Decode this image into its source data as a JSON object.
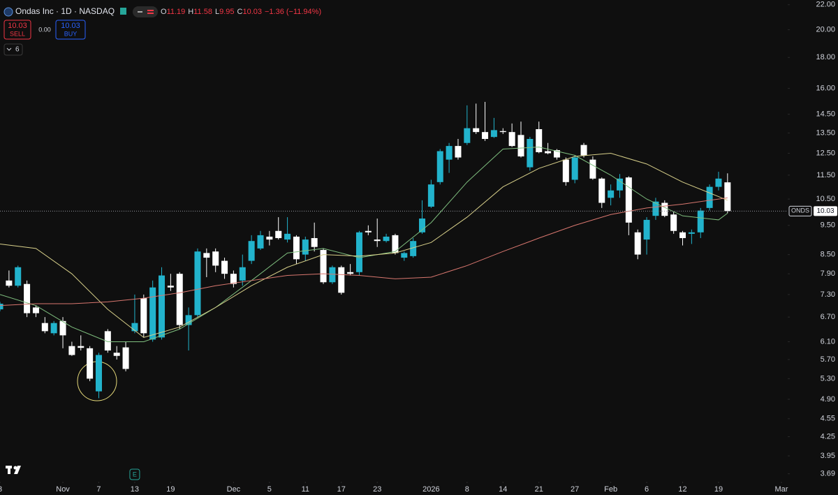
{
  "chart_data": {
    "type": "candlestick",
    "log_scale": true,
    "ylim": [
      3.58,
      22.4
    ],
    "xlim": [
      0,
      87.7
    ],
    "yticks": [
      {
        "value": 22,
        "label": "22.00"
      },
      {
        "value": 20,
        "label": "20.00"
      },
      {
        "value": 18,
        "label": "18.00"
      },
      {
        "value": 16,
        "label": "16.00"
      },
      {
        "value": 14.5,
        "label": "14.50"
      },
      {
        "value": 13.5,
        "label": "13.50"
      },
      {
        "value": 12.5,
        "label": "12.50"
      },
      {
        "value": 11.5,
        "label": "11.50"
      },
      {
        "value": 10.5,
        "label": "10.50"
      },
      {
        "value": 9.5,
        "label": "9.50"
      },
      {
        "value": 8.5,
        "label": "8.50"
      },
      {
        "value": 7.9,
        "label": "7.90"
      },
      {
        "value": 7.3,
        "label": "7.30"
      },
      {
        "value": 6.7,
        "label": "6.70"
      },
      {
        "value": 6.1,
        "label": "6.10"
      },
      {
        "value": 5.7,
        "label": "5.70"
      },
      {
        "value": 5.3,
        "label": "5.30"
      },
      {
        "value": 4.9,
        "label": "4.90"
      },
      {
        "value": 4.55,
        "label": "4.55"
      },
      {
        "value": 4.25,
        "label": "4.25"
      },
      {
        "value": 3.95,
        "label": "3.95"
      },
      {
        "value": 3.69,
        "label": "3.69"
      }
    ],
    "xticks": [
      {
        "value": 0,
        "label": "3"
      },
      {
        "value": 7,
        "label": "Nov"
      },
      {
        "value": 11,
        "label": "7"
      },
      {
        "value": 15,
        "label": "13"
      },
      {
        "value": 19,
        "label": "19"
      },
      {
        "value": 26,
        "label": "Dec"
      },
      {
        "value": 30,
        "label": "5"
      },
      {
        "value": 34,
        "label": "11"
      },
      {
        "value": 38,
        "label": "17"
      },
      {
        "value": 42,
        "label": "23"
      },
      {
        "value": 48,
        "label": "2026"
      },
      {
        "value": 52,
        "label": "8"
      },
      {
        "value": 56,
        "label": "14"
      },
      {
        "value": 60,
        "label": "21"
      },
      {
        "value": 64,
        "label": "27"
      },
      {
        "value": 68,
        "label": "Feb"
      },
      {
        "value": 72,
        "label": "6"
      },
      {
        "value": 76,
        "label": "12"
      },
      {
        "value": 80,
        "label": "19"
      },
      {
        "value": 87,
        "label": "Mar"
      }
    ],
    "up_color": "#22b3cc",
    "down_color": "#ffffff",
    "open": [
      6.9,
      7.7,
      7.55,
      7.6,
      6.95,
      6.55,
      6.3,
      6.6,
      6.0,
      6.0,
      5.95,
      5.05,
      6.35,
      5.85,
      5.97,
      6.35,
      7.2,
      6.15,
      6.2,
      7.55,
      7.9,
      6.5,
      6.75,
      8.55,
      8.6,
      8.3,
      7.9,
      7.7,
      8.3,
      8.7,
      9.1,
      9.3,
      9.0,
      9.1,
      8.5,
      9.05,
      8.65,
      7.65,
      8.1,
      7.95,
      7.95,
      9.3,
      9.0,
      8.95,
      9.15,
      8.4,
      8.45,
      9.25,
      10.2,
      11.2,
      12.2,
      12.85,
      13.0,
      13.75,
      13.55,
      13.3,
      13.6,
      13.55,
      13.4,
      11.85,
      13.7,
      12.6,
      12.65,
      12.2,
      11.3,
      12.9,
      12.2,
      11.35,
      10.55,
      10.85,
      11.4,
      9.25,
      9.0,
      9.85,
      10.35,
      9.9,
      9.25,
      9.2,
      9.25,
      10.15,
      11.0,
      11.19
    ],
    "high": [
      7.1,
      8.0,
      8.15,
      7.7,
      7.0,
      6.7,
      6.6,
      6.7,
      6.1,
      6.25,
      6.0,
      5.85,
      6.4,
      6.0,
      6.1,
      7.3,
      7.3,
      7.7,
      8.1,
      7.9,
      7.95,
      6.95,
      8.7,
      8.7,
      8.7,
      8.4,
      8.0,
      8.5,
      9.15,
      9.3,
      9.3,
      9.8,
      9.8,
      9.15,
      9.1,
      9.6,
      8.7,
      8.15,
      8.15,
      8.2,
      9.3,
      9.5,
      9.75,
      9.2,
      9.2,
      8.6,
      9.05,
      10.45,
      11.3,
      12.7,
      13.0,
      13.2,
      15.0,
      15.1,
      15.2,
      14.3,
      13.75,
      14.0,
      14.1,
      13.3,
      14.1,
      13.0,
      12.7,
      12.3,
      12.4,
      13.0,
      12.35,
      11.4,
      11.1,
      11.55,
      11.45,
      9.35,
      9.8,
      10.55,
      10.45,
      10.0,
      9.3,
      9.35,
      10.15,
      11.1,
      11.65,
      11.58
    ],
    "low": [
      6.85,
      7.5,
      7.5,
      6.7,
      6.7,
      6.3,
      6.25,
      5.95,
      5.78,
      5.9,
      5.25,
      4.92,
      5.85,
      5.7,
      5.45,
      6.3,
      6.2,
      6.1,
      6.15,
      7.4,
      6.4,
      5.9,
      6.7,
      7.8,
      7.95,
      7.75,
      7.5,
      7.55,
      8.2,
      8.65,
      8.8,
      9.0,
      8.9,
      8.2,
      8.3,
      8.6,
      7.6,
      7.6,
      7.3,
      7.85,
      7.85,
      9.15,
      8.75,
      8.9,
      8.5,
      8.3,
      8.4,
      9.2,
      10.15,
      11.1,
      11.6,
      12.2,
      12.9,
      13.45,
      13.1,
      13.25,
      13.45,
      12.8,
      12.3,
      11.7,
      12.5,
      12.45,
      12.2,
      11.05,
      11.15,
      12.3,
      11.3,
      10.15,
      10.25,
      10.55,
      9.15,
      8.35,
      8.5,
      9.7,
      9.8,
      9.2,
      8.8,
      8.85,
      9.05,
      10.05,
      10.85,
      9.95
    ],
    "close": [
      7.05,
      7.55,
      8.1,
      6.8,
      6.8,
      6.35,
      6.55,
      6.25,
      5.8,
      5.96,
      5.3,
      5.8,
      5.9,
      5.78,
      5.5,
      6.55,
      6.3,
      7.5,
      7.85,
      7.5,
      6.5,
      6.75,
      8.6,
      8.4,
      8.15,
      7.9,
      7.6,
      8.1,
      8.95,
      9.15,
      9.0,
      9.05,
      9.2,
      8.35,
      9.0,
      8.75,
      7.65,
      8.1,
      7.35,
      7.9,
      9.25,
      9.25,
      8.95,
      9.1,
      8.55,
      8.55,
      8.95,
      9.75,
      11.1,
      12.6,
      12.85,
      12.3,
      13.75,
      13.55,
      13.2,
      13.65,
      13.55,
      12.85,
      12.35,
      13.2,
      12.55,
      12.5,
      12.3,
      11.2,
      12.3,
      12.4,
      11.35,
      10.35,
      10.85,
      11.35,
      9.6,
      8.5,
      9.7,
      10.4,
      9.85,
      9.3,
      9.05,
      9.25,
      10.05,
      11.0,
      11.35,
      10.03
    ],
    "series": [
      {
        "color": "#7fbf7f",
        "x": [
          0,
          4,
          8,
          12,
          16,
          20,
          24,
          28,
          32,
          36,
          40,
          44,
          48,
          52,
          56,
          60,
          64,
          68,
          72,
          76,
          80,
          81
        ],
        "values": [
          7.3,
          7.0,
          6.45,
          6.1,
          6.1,
          6.4,
          6.95,
          7.7,
          8.55,
          8.7,
          8.4,
          8.6,
          9.6,
          11.2,
          12.7,
          12.8,
          12.4,
          11.5,
          10.5,
          9.85,
          9.7,
          9.95
        ]
      },
      {
        "color": "#d8d08a",
        "x": [
          0,
          4,
          8,
          12,
          16,
          20,
          24,
          28,
          32,
          36,
          40,
          44,
          48,
          52,
          56,
          60,
          64,
          68,
          72,
          76,
          80,
          81
        ],
        "values": [
          8.85,
          8.7,
          7.9,
          6.9,
          6.2,
          6.45,
          6.95,
          7.55,
          8.1,
          8.5,
          8.45,
          8.55,
          8.9,
          9.8,
          11.0,
          11.8,
          12.35,
          12.5,
          12.0,
          11.2,
          10.6,
          10.45
        ]
      },
      {
        "color": "#d9776f",
        "x": [
          0,
          4,
          8,
          12,
          16,
          20,
          24,
          28,
          32,
          36,
          40,
          44,
          48,
          52,
          56,
          60,
          64,
          68,
          72,
          76,
          80,
          81
        ],
        "values": [
          7.0,
          7.05,
          7.05,
          7.1,
          7.2,
          7.35,
          7.55,
          7.7,
          7.85,
          7.9,
          7.85,
          7.75,
          7.8,
          8.15,
          8.6,
          9.05,
          9.5,
          9.9,
          10.15,
          10.3,
          10.5,
          10.55
        ]
      }
    ],
    "symbol_tag": "ONDS",
    "earnings_marker": "E",
    "earnings_x": 15
  },
  "header": {
    "symbol": "Ondas Inc · 1D · NASDAQ",
    "ohlc": [
      {
        "key": "O",
        "value": "11.19"
      },
      {
        "key": "H",
        "value": "11.58"
      },
      {
        "key": "L",
        "value": "9.95"
      },
      {
        "key": "C",
        "value": "10.03"
      }
    ],
    "change": "−1.36 (−11.94%)",
    "sell_price": "10.03",
    "sell_label": "SELL",
    "spread": "0.00",
    "buy_price": "10.03",
    "buy_label": "BUY",
    "indicators": "6"
  }
}
